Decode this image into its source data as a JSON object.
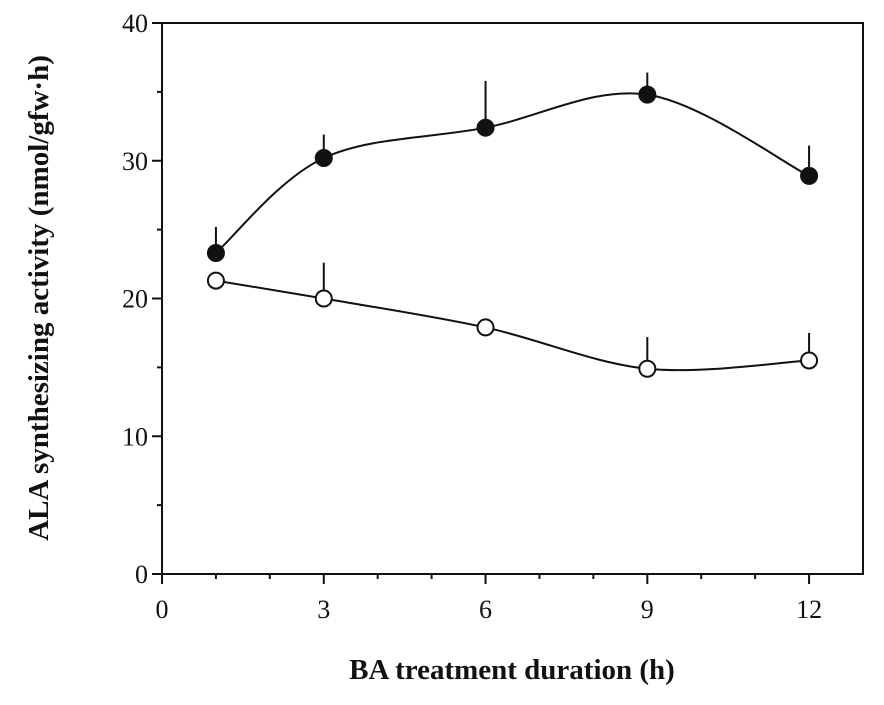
{
  "chart_data": {
    "type": "line",
    "title": "",
    "xlabel": "BA treatment duration (h)",
    "ylabel": "ALA synthesizing activity (nmol/gfw·h)",
    "xlim": [
      0,
      13
    ],
    "ylim": [
      0,
      40
    ],
    "xticks": [
      0,
      3,
      6,
      9,
      12
    ],
    "yticks": [
      0,
      10,
      20,
      30,
      40
    ],
    "x": [
      1,
      3,
      6,
      9,
      12
    ],
    "grid": false,
    "legend": "none",
    "series": [
      {
        "marker": "filled-circle",
        "values": [
          23.3,
          30.2,
          32.4,
          34.8,
          28.9
        ],
        "error_upper": [
          1.9,
          1.7,
          3.4,
          1.6,
          2.2
        ]
      },
      {
        "marker": "open-circle",
        "values": [
          21.3,
          20.0,
          17.9,
          14.9,
          15.5
        ],
        "error_upper": [
          0,
          2.6,
          0,
          2.3,
          2.0
        ]
      }
    ],
    "colors": {
      "line": "#111111",
      "open_fill": "#ffffff"
    }
  }
}
